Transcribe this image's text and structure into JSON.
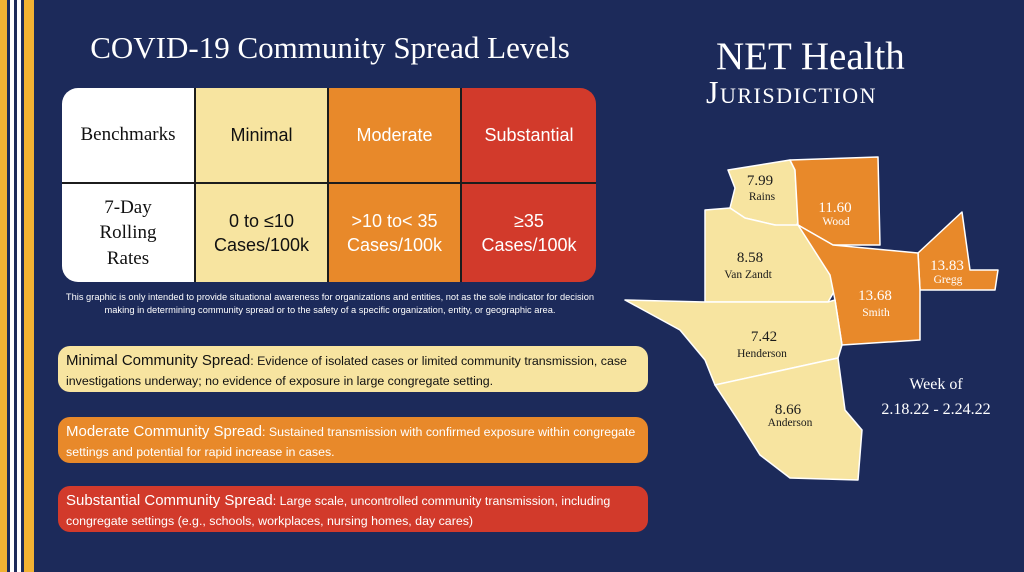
{
  "title": "COVID-19 Community Spread Levels",
  "table": {
    "header": {
      "benchmarks": "Benchmarks",
      "minimal": "Minimal",
      "moderate": "Moderate",
      "substantial": "Substantial"
    },
    "row": {
      "label": "7-Day\nRolling\nRates",
      "minimal": "0 to ≤10\nCases/100k",
      "moderate": ">10 to< 35\nCases/100k",
      "substantial": "≥35\nCases/100k"
    }
  },
  "disclaimer": "This graphic is only intended to provide situational awareness for organizations and entities, not as the sole indicator for decision making in determining community spread or to the safety of a specific organization, entity, or geographic area.",
  "levels": {
    "minimal": {
      "heading": "Minimal Community Spread",
      "text": ": Evidence of isolated cases or limited community transmission, case investigations underway; no evidence of exposure in large congregate setting."
    },
    "moderate": {
      "heading": "Moderate Community Spread",
      "text": ": Sustained transmission with confirmed exposure within congregate settings and potential for rapid increase in cases."
    },
    "substantial": {
      "heading": "Substantial Community Spread",
      "text": ": Large scale, uncontrolled community transmission, including congregate settings  (e.g., schools, workplaces, nursing homes, day cares)"
    }
  },
  "jurisdiction": {
    "line1": "NET Health",
    "line2": "Jurisdiction"
  },
  "counties": {
    "rains": {
      "value": "7.99",
      "name": "Rains"
    },
    "wood": {
      "value": "11.60",
      "name": "Wood"
    },
    "gregg": {
      "value": "13.83",
      "name": "Gregg"
    },
    "van_zandt": {
      "value": "8.58",
      "name": "Van Zandt"
    },
    "smith": {
      "value": "13.68",
      "name": "Smith"
    },
    "henderson": {
      "value": "7.42",
      "name": "Henderson"
    },
    "anderson": {
      "value": "8.66",
      "name": "Anderson"
    }
  },
  "week": {
    "label": "Week of",
    "range": "2.18.22 - 2.24.22"
  },
  "colors": {
    "minimal": "#f7e4a0",
    "moderate": "#e8892a",
    "substantial": "#d23a2b",
    "background": "#1c2a5a",
    "accent": "#f2b233"
  }
}
